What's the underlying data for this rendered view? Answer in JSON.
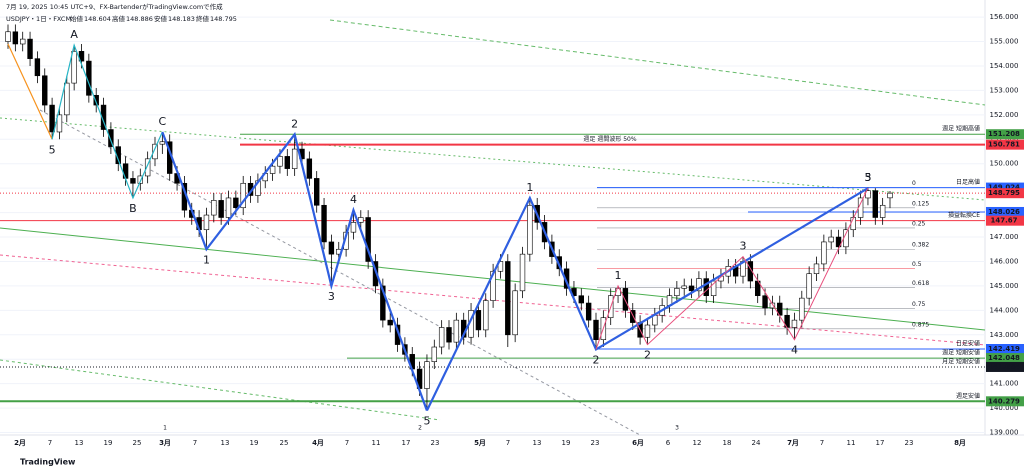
{
  "chart_data": {
    "type": "candlestick",
    "caption": "7月 19, 2025 10:45 UTC+9、FX-BartenderがTradingView.comで作成",
    "symbol": "USDJPY・1日・FXCM",
    "legend_ohlc": [
      {
        "label": "始値",
        "value": 148.604
      },
      {
        "label": "高値",
        "value": 148.886
      },
      {
        "label": "安値",
        "value": 148.183
      },
      {
        "label": "終値",
        "value": 148.795
      }
    ],
    "brand": "TradingView",
    "ylim": [
      138.9,
      156.7
    ],
    "yticks": [
      {
        "value": 139,
        "label": "139.000"
      },
      {
        "value": 140,
        "label": "140.000"
      },
      {
        "value": 141,
        "label": "141.000"
      },
      {
        "value": 142,
        "label": "142.000"
      },
      {
        "value": 143,
        "label": "143.000"
      },
      {
        "value": 144,
        "label": "144.000"
      },
      {
        "value": 145,
        "label": "145.000"
      },
      {
        "value": 146,
        "label": "146.000"
      },
      {
        "value": 147,
        "label": "147.000"
      },
      {
        "value": 148,
        "label": "148.000"
      },
      {
        "value": 149,
        "label": "149.000"
      },
      {
        "value": 150,
        "label": "150.000"
      },
      {
        "value": 151,
        "label": "151.000"
      },
      {
        "value": 152,
        "label": "152.000"
      },
      {
        "value": 153,
        "label": "153.000"
      },
      {
        "value": 154,
        "label": "154.000"
      },
      {
        "value": 155,
        "label": "155.000"
      },
      {
        "value": 156,
        "label": "156.000"
      }
    ],
    "grid": true,
    "xlabels": [
      "2月",
      "7",
      "13",
      "19",
      "25",
      "3月",
      "7",
      "13",
      "19",
      "25",
      "4月",
      "7",
      "11",
      "17",
      "23",
      "5月",
      "7",
      "13",
      "19",
      "23",
      "6月",
      "6",
      "12",
      "18",
      "24",
      "7月",
      "7",
      "11",
      "17",
      "23",
      "8月"
    ],
    "up_color": "#ffffff",
    "down_color": "#000000",
    "ohlc": [
      [
        155.0,
        155.7,
        154.7,
        155.4
      ],
      [
        155.4,
        155.7,
        154.6,
        154.9
      ],
      [
        154.9,
        155.4,
        154.6,
        155.1
      ],
      [
        155.1,
        155.4,
        154.0,
        154.3
      ],
      [
        154.3,
        154.6,
        153.3,
        153.6
      ],
      [
        153.6,
        153.9,
        152.1,
        152.4
      ],
      [
        152.4,
        152.7,
        151.0,
        151.3
      ],
      [
        151.3,
        152.3,
        151.0,
        152.0
      ],
      [
        152.0,
        153.6,
        151.7,
        153.3
      ],
      [
        153.3,
        154.85,
        153.0,
        154.6
      ],
      [
        154.6,
        154.9,
        153.9,
        154.2
      ],
      [
        154.2,
        154.5,
        152.5,
        152.8
      ],
      [
        152.8,
        153.1,
        152.1,
        152.4
      ],
      [
        152.4,
        152.7,
        151.1,
        151.4
      ],
      [
        151.4,
        151.7,
        150.4,
        150.7
      ],
      [
        150.7,
        151.0,
        149.7,
        150.0
      ],
      [
        150.0,
        150.3,
        149.1,
        149.4
      ],
      [
        149.4,
        149.7,
        148.6,
        149.2
      ],
      [
        149.2,
        149.8,
        148.9,
        149.5
      ],
      [
        149.5,
        150.5,
        149.2,
        150.2
      ],
      [
        150.2,
        151.1,
        149.9,
        150.8
      ],
      [
        150.8,
        151.3,
        150.4,
        150.9
      ],
      [
        150.9,
        151.2,
        149.3,
        149.6
      ],
      [
        149.6,
        149.9,
        148.9,
        149.2
      ],
      [
        149.2,
        149.5,
        147.8,
        148.1
      ],
      [
        148.1,
        148.4,
        147.5,
        147.8
      ],
      [
        147.8,
        148.1,
        147.0,
        147.3
      ],
      [
        147.3,
        148.2,
        146.5,
        147.9
      ],
      [
        147.9,
        148.8,
        147.6,
        148.5
      ],
      [
        148.5,
        148.8,
        147.5,
        147.8
      ],
      [
        147.8,
        148.9,
        147.5,
        148.6
      ],
      [
        148.6,
        148.9,
        147.9,
        148.2
      ],
      [
        148.2,
        149.5,
        147.9,
        149.2
      ],
      [
        149.2,
        149.5,
        148.4,
        148.7
      ],
      [
        148.7,
        149.6,
        148.4,
        149.3
      ],
      [
        149.3,
        149.9,
        149.0,
        149.6
      ],
      [
        149.6,
        150.2,
        149.3,
        149.9
      ],
      [
        149.9,
        150.6,
        149.6,
        150.3
      ],
      [
        150.3,
        150.6,
        149.5,
        149.8
      ],
      [
        149.8,
        151.2,
        149.5,
        150.6
      ],
      [
        150.6,
        150.9,
        149.9,
        150.2
      ],
      [
        150.2,
        150.5,
        149.1,
        149.4
      ],
      [
        149.4,
        149.7,
        148.0,
        148.3
      ],
      [
        148.3,
        148.6,
        146.5,
        146.8
      ],
      [
        146.8,
        147.1,
        145.0,
        146.3
      ],
      [
        146.3,
        146.8,
        146.0,
        146.5
      ],
      [
        146.5,
        147.5,
        146.2,
        147.2
      ],
      [
        147.2,
        148.1,
        146.9,
        147.6
      ],
      [
        147.6,
        148.1,
        147.3,
        147.8
      ],
      [
        147.8,
        148.1,
        145.7,
        146.0
      ],
      [
        146.0,
        146.3,
        144.7,
        145.0
      ],
      [
        145.0,
        145.3,
        143.3,
        143.6
      ],
      [
        143.6,
        143.9,
        143.1,
        143.4
      ],
      [
        143.4,
        143.7,
        142.3,
        142.6
      ],
      [
        142.6,
        142.9,
        141.9,
        142.2
      ],
      [
        142.2,
        142.5,
        141.3,
        141.6
      ],
      [
        141.6,
        141.9,
        140.5,
        140.8
      ],
      [
        140.8,
        142.2,
        139.9,
        141.9
      ],
      [
        141.9,
        142.8,
        141.6,
        142.5
      ],
      [
        142.5,
        143.6,
        142.2,
        143.3
      ],
      [
        143.3,
        143.6,
        142.4,
        142.7
      ],
      [
        142.7,
        143.9,
        142.4,
        143.6
      ],
      [
        143.6,
        143.9,
        142.6,
        142.9
      ],
      [
        142.9,
        144.3,
        142.6,
        144.0
      ],
      [
        144.0,
        144.3,
        142.9,
        143.2
      ],
      [
        143.2,
        144.7,
        142.9,
        144.4
      ],
      [
        144.4,
        145.9,
        144.1,
        145.6
      ],
      [
        145.6,
        146.3,
        145.3,
        146.0
      ],
      [
        146.0,
        146.3,
        142.5,
        143.0
      ],
      [
        143.0,
        145.1,
        142.7,
        144.8
      ],
      [
        144.8,
        146.6,
        144.5,
        146.3
      ],
      [
        146.3,
        148.6,
        146.0,
        148.3
      ],
      [
        148.3,
        148.6,
        147.3,
        147.6
      ],
      [
        147.6,
        147.9,
        146.5,
        146.8
      ],
      [
        146.8,
        147.1,
        145.9,
        146.2
      ],
      [
        146.2,
        146.5,
        145.4,
        145.7
      ],
      [
        145.7,
        146.0,
        144.6,
        144.9
      ],
      [
        144.9,
        145.2,
        144.3,
        144.6
      ],
      [
        144.6,
        144.9,
        144.0,
        144.3
      ],
      [
        144.3,
        144.6,
        143.3,
        143.6
      ],
      [
        143.6,
        143.9,
        142.4,
        142.8
      ],
      [
        142.8,
        144.0,
        142.5,
        143.7
      ],
      [
        143.7,
        144.9,
        143.4,
        144.6
      ],
      [
        144.6,
        145.0,
        144.3,
        144.9
      ],
      [
        144.9,
        145.2,
        143.7,
        144.0
      ],
      [
        144.0,
        144.3,
        143.2,
        143.5
      ],
      [
        143.5,
        143.8,
        142.6,
        142.9
      ],
      [
        142.9,
        143.7,
        142.6,
        143.4
      ],
      [
        143.4,
        144.1,
        143.1,
        143.8
      ],
      [
        143.8,
        144.5,
        143.5,
        144.2
      ],
      [
        144.2,
        144.9,
        143.9,
        144.6
      ],
      [
        144.6,
        145.2,
        144.3,
        144.9
      ],
      [
        144.9,
        145.3,
        144.6,
        145.0
      ],
      [
        145.0,
        145.3,
        144.5,
        144.8
      ],
      [
        144.8,
        145.6,
        144.5,
        145.3
      ],
      [
        145.3,
        145.6,
        144.3,
        144.6
      ],
      [
        144.6,
        145.5,
        144.3,
        145.2
      ],
      [
        145.2,
        145.7,
        144.9,
        145.4
      ],
      [
        145.4,
        146.1,
        145.1,
        145.8
      ],
      [
        145.8,
        146.1,
        145.1,
        145.4
      ],
      [
        145.4,
        146.2,
        145.1,
        146.0
      ],
      [
        146.0,
        146.3,
        144.9,
        145.2
      ],
      [
        145.2,
        145.5,
        144.3,
        144.6
      ],
      [
        144.6,
        144.9,
        143.8,
        144.1
      ],
      [
        144.1,
        144.6,
        143.8,
        144.3
      ],
      [
        144.3,
        144.6,
        143.5,
        143.8
      ],
      [
        143.8,
        144.1,
        143.0,
        143.3
      ],
      [
        143.3,
        143.9,
        142.8,
        143.6
      ],
      [
        143.6,
        144.8,
        143.3,
        144.5
      ],
      [
        144.5,
        145.8,
        144.2,
        145.5
      ],
      [
        145.5,
        146.2,
        145.2,
        145.9
      ],
      [
        145.9,
        147.1,
        145.6,
        146.8
      ],
      [
        146.8,
        147.3,
        146.5,
        147.0
      ],
      [
        147.0,
        147.3,
        146.3,
        146.6
      ],
      [
        146.6,
        147.6,
        146.3,
        147.3
      ],
      [
        147.3,
        148.1,
        147.0,
        147.8
      ],
      [
        147.8,
        148.9,
        147.5,
        148.6
      ],
      [
        148.6,
        149.02,
        148.3,
        148.9
      ],
      [
        148.9,
        149.0,
        147.5,
        147.8
      ],
      [
        147.8,
        148.6,
        147.5,
        148.3
      ],
      [
        148.604,
        148.886,
        148.183,
        148.795
      ]
    ],
    "waves": [
      {
        "color": "#f7931e",
        "labels": [
          null,
          "5"
        ],
        "values": [
          154.9,
          151.0
        ]
      },
      {
        "color": "#26b5c6",
        "labels": [
          null,
          "A",
          "B",
          "C"
        ],
        "values": [
          151.0,
          154.85,
          148.6,
          151.3
        ]
      },
      {
        "color": "#2f5fe0",
        "labels": [
          null,
          "1",
          "2",
          "3",
          "4",
          "5"
        ],
        "values": [
          151.3,
          146.5,
          151.2,
          145.0,
          148.1,
          139.9
        ]
      },
      {
        "color": "#2f5fe0",
        "labels": [
          null,
          "1",
          "2",
          "3"
        ],
        "values": [
          139.9,
          148.6,
          142.4,
          149.0
        ]
      },
      {
        "color": "#e84f7d",
        "labels": [
          null,
          "1",
          "2",
          "3",
          "4",
          "5"
        ],
        "values": [
          142.4,
          145.0,
          142.6,
          146.2,
          142.8,
          149.0
        ]
      }
    ],
    "levels": [
      {
        "value": 151.208,
        "color": "#43a047",
        "label": "週足 短期高値"
      },
      {
        "value": 150.781,
        "color": "#f23645",
        "label": "週足 週間波形 50%"
      },
      {
        "value": 149.024,
        "color": "#2962ff",
        "label": "日足高値"
      },
      {
        "value": 148.795,
        "color": "#f23645"
      },
      {
        "value": 148.026,
        "color": "#2962ff"
      },
      {
        "value": 147.67,
        "color": "#f23645",
        "label": "損益転換CE"
      },
      {
        "value": 142.419,
        "color": "#2962ff",
        "label": "日足安値"
      },
      {
        "value": 142.048,
        "color": "#43a047",
        "label": "週足 短期安値"
      },
      {
        "value": 141.684,
        "color": "#131722",
        "label": "月足 短期安値"
      },
      {
        "value": 140.279,
        "color": "#43a047",
        "label": "週足安値"
      }
    ],
    "fib": {
      "range": [
        149.024,
        142.419
      ],
      "levels": [
        0,
        0.125,
        0.25,
        0.382,
        0.5,
        0.618,
        0.75,
        0.875
      ],
      "color": "#787b86",
      "highlight_color": "#f23645"
    },
    "bottom_marks": [
      "1",
      "2",
      "3"
    ]
  }
}
